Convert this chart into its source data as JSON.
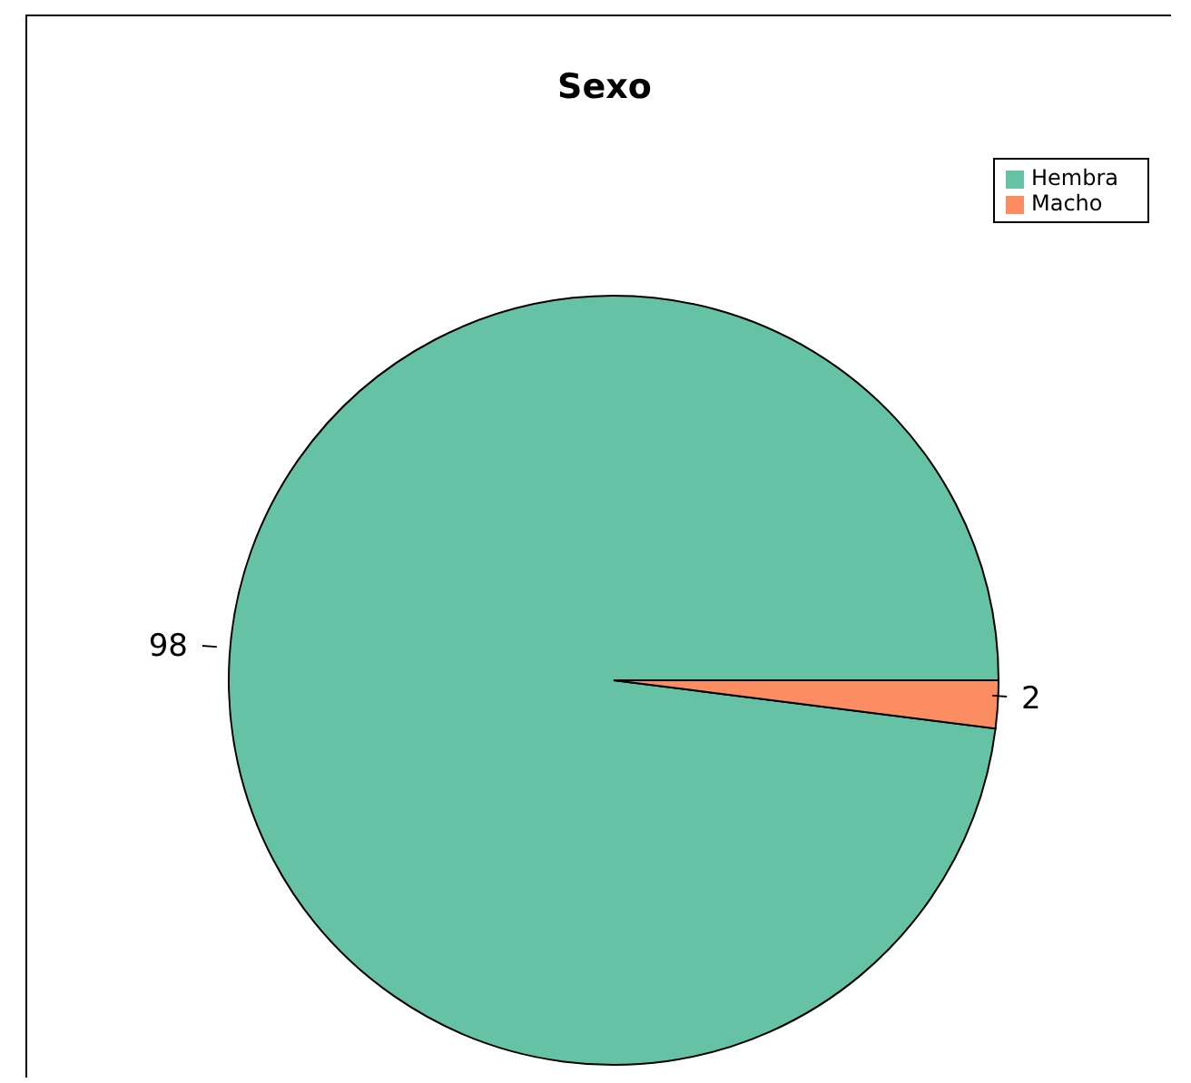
{
  "chart_data": {
    "type": "pie",
    "title": "Sexo",
    "categories": [
      "Hembra",
      "Macho"
    ],
    "values": [
      98,
      2
    ],
    "colors": [
      "#66c2a5",
      "#fc8d62"
    ],
    "data_labels": true,
    "legend": "top right"
  }
}
